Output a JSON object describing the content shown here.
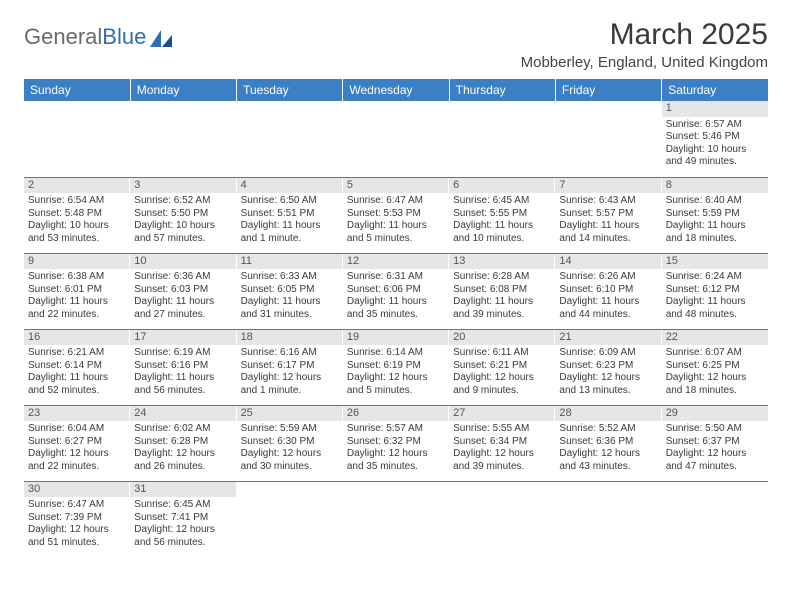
{
  "brand": {
    "word1": "General",
    "word2": "Blue"
  },
  "title": "March 2025",
  "subtitle": "Mobberley, England, United Kingdom",
  "colors": {
    "header_bg": "#3b7fc4",
    "header_text": "#ffffff",
    "daynum_bg": "#e6e6e6",
    "cell_border": "#3b7fc4",
    "brand_gray": "#6a6a6a",
    "brand_blue": "#2f6fb0"
  },
  "weekdays": [
    "Sunday",
    "Monday",
    "Tuesday",
    "Wednesday",
    "Thursday",
    "Friday",
    "Saturday"
  ],
  "weeks": [
    [
      {
        "n": "",
        "lines": []
      },
      {
        "n": "",
        "lines": []
      },
      {
        "n": "",
        "lines": []
      },
      {
        "n": "",
        "lines": []
      },
      {
        "n": "",
        "lines": []
      },
      {
        "n": "",
        "lines": []
      },
      {
        "n": "1",
        "lines": [
          "Sunrise: 6:57 AM",
          "Sunset: 5:46 PM",
          "Daylight: 10 hours",
          "and 49 minutes."
        ]
      }
    ],
    [
      {
        "n": "2",
        "lines": [
          "Sunrise: 6:54 AM",
          "Sunset: 5:48 PM",
          "Daylight: 10 hours",
          "and 53 minutes."
        ]
      },
      {
        "n": "3",
        "lines": [
          "Sunrise: 6:52 AM",
          "Sunset: 5:50 PM",
          "Daylight: 10 hours",
          "and 57 minutes."
        ]
      },
      {
        "n": "4",
        "lines": [
          "Sunrise: 6:50 AM",
          "Sunset: 5:51 PM",
          "Daylight: 11 hours",
          "and 1 minute."
        ]
      },
      {
        "n": "5",
        "lines": [
          "Sunrise: 6:47 AM",
          "Sunset: 5:53 PM",
          "Daylight: 11 hours",
          "and 5 minutes."
        ]
      },
      {
        "n": "6",
        "lines": [
          "Sunrise: 6:45 AM",
          "Sunset: 5:55 PM",
          "Daylight: 11 hours",
          "and 10 minutes."
        ]
      },
      {
        "n": "7",
        "lines": [
          "Sunrise: 6:43 AM",
          "Sunset: 5:57 PM",
          "Daylight: 11 hours",
          "and 14 minutes."
        ]
      },
      {
        "n": "8",
        "lines": [
          "Sunrise: 6:40 AM",
          "Sunset: 5:59 PM",
          "Daylight: 11 hours",
          "and 18 minutes."
        ]
      }
    ],
    [
      {
        "n": "9",
        "lines": [
          "Sunrise: 6:38 AM",
          "Sunset: 6:01 PM",
          "Daylight: 11 hours",
          "and 22 minutes."
        ]
      },
      {
        "n": "10",
        "lines": [
          "Sunrise: 6:36 AM",
          "Sunset: 6:03 PM",
          "Daylight: 11 hours",
          "and 27 minutes."
        ]
      },
      {
        "n": "11",
        "lines": [
          "Sunrise: 6:33 AM",
          "Sunset: 6:05 PM",
          "Daylight: 11 hours",
          "and 31 minutes."
        ]
      },
      {
        "n": "12",
        "lines": [
          "Sunrise: 6:31 AM",
          "Sunset: 6:06 PM",
          "Daylight: 11 hours",
          "and 35 minutes."
        ]
      },
      {
        "n": "13",
        "lines": [
          "Sunrise: 6:28 AM",
          "Sunset: 6:08 PM",
          "Daylight: 11 hours",
          "and 39 minutes."
        ]
      },
      {
        "n": "14",
        "lines": [
          "Sunrise: 6:26 AM",
          "Sunset: 6:10 PM",
          "Daylight: 11 hours",
          "and 44 minutes."
        ]
      },
      {
        "n": "15",
        "lines": [
          "Sunrise: 6:24 AM",
          "Sunset: 6:12 PM",
          "Daylight: 11 hours",
          "and 48 minutes."
        ]
      }
    ],
    [
      {
        "n": "16",
        "lines": [
          "Sunrise: 6:21 AM",
          "Sunset: 6:14 PM",
          "Daylight: 11 hours",
          "and 52 minutes."
        ]
      },
      {
        "n": "17",
        "lines": [
          "Sunrise: 6:19 AM",
          "Sunset: 6:16 PM",
          "Daylight: 11 hours",
          "and 56 minutes."
        ]
      },
      {
        "n": "18",
        "lines": [
          "Sunrise: 6:16 AM",
          "Sunset: 6:17 PM",
          "Daylight: 12 hours",
          "and 1 minute."
        ]
      },
      {
        "n": "19",
        "lines": [
          "Sunrise: 6:14 AM",
          "Sunset: 6:19 PM",
          "Daylight: 12 hours",
          "and 5 minutes."
        ]
      },
      {
        "n": "20",
        "lines": [
          "Sunrise: 6:11 AM",
          "Sunset: 6:21 PM",
          "Daylight: 12 hours",
          "and 9 minutes."
        ]
      },
      {
        "n": "21",
        "lines": [
          "Sunrise: 6:09 AM",
          "Sunset: 6:23 PM",
          "Daylight: 12 hours",
          "and 13 minutes."
        ]
      },
      {
        "n": "22",
        "lines": [
          "Sunrise: 6:07 AM",
          "Sunset: 6:25 PM",
          "Daylight: 12 hours",
          "and 18 minutes."
        ]
      }
    ],
    [
      {
        "n": "23",
        "lines": [
          "Sunrise: 6:04 AM",
          "Sunset: 6:27 PM",
          "Daylight: 12 hours",
          "and 22 minutes."
        ]
      },
      {
        "n": "24",
        "lines": [
          "Sunrise: 6:02 AM",
          "Sunset: 6:28 PM",
          "Daylight: 12 hours",
          "and 26 minutes."
        ]
      },
      {
        "n": "25",
        "lines": [
          "Sunrise: 5:59 AM",
          "Sunset: 6:30 PM",
          "Daylight: 12 hours",
          "and 30 minutes."
        ]
      },
      {
        "n": "26",
        "lines": [
          "Sunrise: 5:57 AM",
          "Sunset: 6:32 PM",
          "Daylight: 12 hours",
          "and 35 minutes."
        ]
      },
      {
        "n": "27",
        "lines": [
          "Sunrise: 5:55 AM",
          "Sunset: 6:34 PM",
          "Daylight: 12 hours",
          "and 39 minutes."
        ]
      },
      {
        "n": "28",
        "lines": [
          "Sunrise: 5:52 AM",
          "Sunset: 6:36 PM",
          "Daylight: 12 hours",
          "and 43 minutes."
        ]
      },
      {
        "n": "29",
        "lines": [
          "Sunrise: 5:50 AM",
          "Sunset: 6:37 PM",
          "Daylight: 12 hours",
          "and 47 minutes."
        ]
      }
    ],
    [
      {
        "n": "30",
        "lines": [
          "Sunrise: 6:47 AM",
          "Sunset: 7:39 PM",
          "Daylight: 12 hours",
          "and 51 minutes."
        ]
      },
      {
        "n": "31",
        "lines": [
          "Sunrise: 6:45 AM",
          "Sunset: 7:41 PM",
          "Daylight: 12 hours",
          "and 56 minutes."
        ]
      },
      {
        "n": "",
        "lines": []
      },
      {
        "n": "",
        "lines": []
      },
      {
        "n": "",
        "lines": []
      },
      {
        "n": "",
        "lines": []
      },
      {
        "n": "",
        "lines": []
      }
    ]
  ]
}
